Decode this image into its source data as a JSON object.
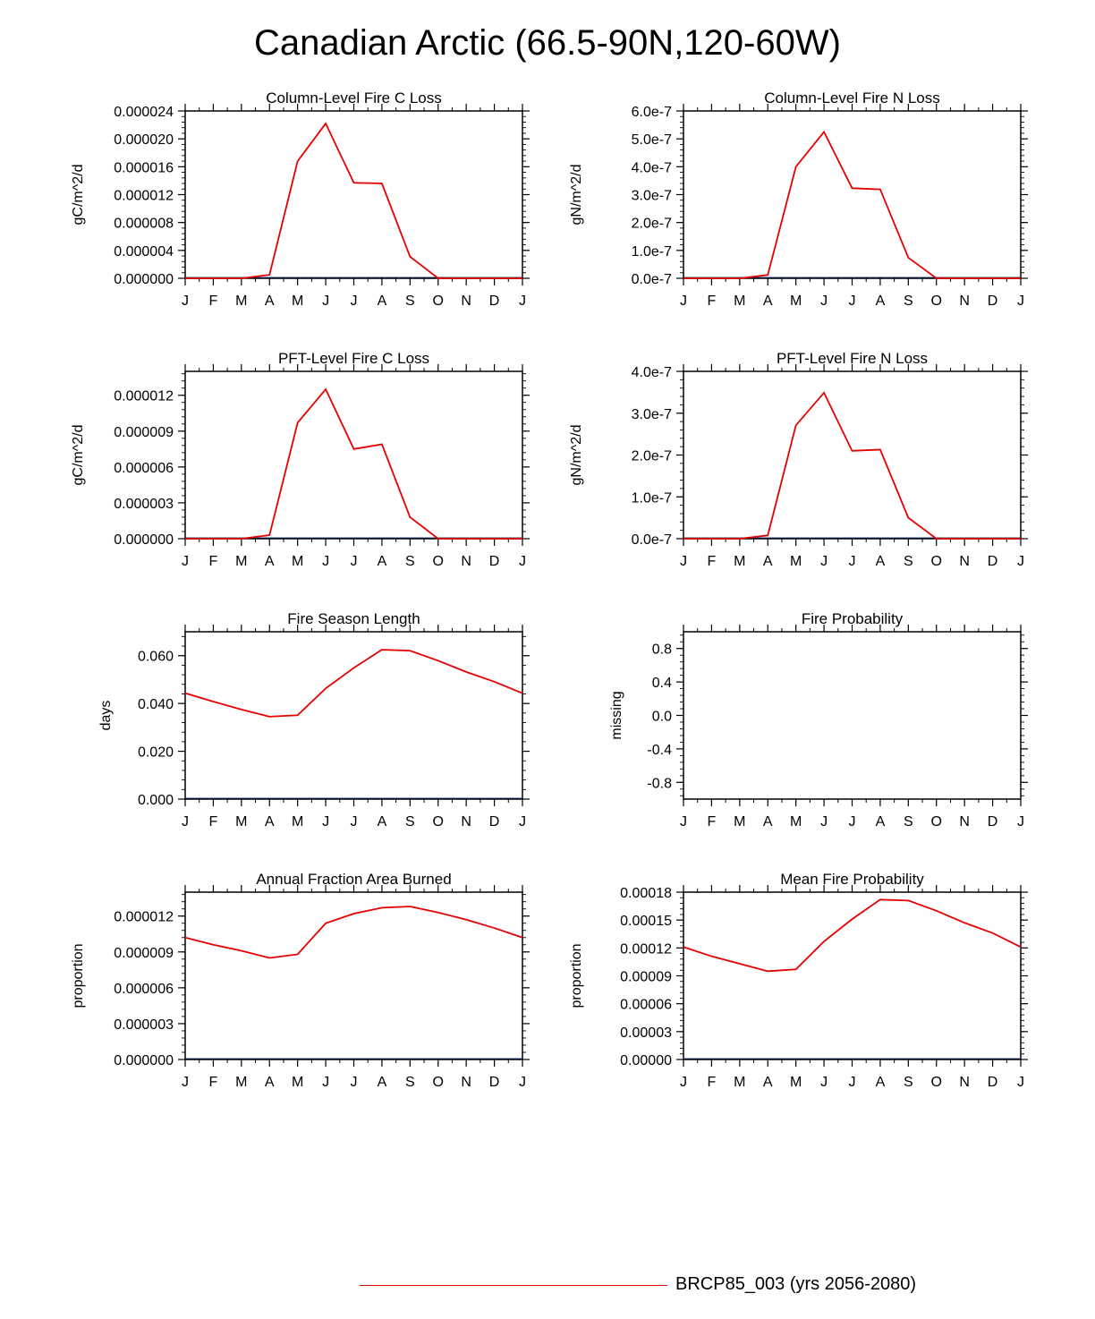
{
  "page_title": "Canadian Arctic (66.5-90N,120-60W)",
  "legend": {
    "label": "BRCP85_003 (yrs 2056-2080)",
    "color": "#e60000"
  },
  "chart_data": [
    {
      "type": "line",
      "title": "Column-Level Fire C Loss",
      "ylabel": "gC/m^2/d",
      "ylim": [
        0,
        2.4e-05
      ],
      "yticks": [
        "0.000000",
        "0.000004",
        "0.000008",
        "0.000012",
        "0.000016",
        "0.000020",
        "0.000024"
      ],
      "xticks": [
        "J",
        "F",
        "M",
        "A",
        "M",
        "J",
        "J",
        "A",
        "S",
        "O",
        "N",
        "D",
        "J"
      ],
      "series": [
        {
          "name": "BRCP85_003 (yrs 2056-2080)",
          "values": [
            0,
            0,
            0,
            5e-07,
            1.68e-05,
            2.22e-05,
            1.37e-05,
            1.36e-05,
            3.1e-06,
            0,
            0,
            0,
            0
          ]
        }
      ]
    },
    {
      "type": "line",
      "title": "Column-Level Fire N Loss",
      "ylabel": "gN/m^2/d",
      "ylim": [
        0,
        6e-07
      ],
      "yticks": [
        "0.0e-7",
        "1.0e-7",
        "2.0e-7",
        "3.0e-7",
        "4.0e-7",
        "5.0e-7",
        "6.0e-7"
      ],
      "xticks": [
        "J",
        "F",
        "M",
        "A",
        "M",
        "J",
        "J",
        "A",
        "S",
        "O",
        "N",
        "D",
        "J"
      ],
      "series": [
        {
          "name": "BRCP85_003 (yrs 2056-2080)",
          "values": [
            0,
            0,
            0,
            1.2e-08,
            4e-07,
            5.25e-07,
            3.23e-07,
            3.19e-07,
            7.4e-08,
            0,
            0,
            0,
            0
          ]
        }
      ]
    },
    {
      "type": "line",
      "title": "PFT-Level Fire C Loss",
      "ylabel": "gC/m^2/d",
      "ylim": [
        0,
        1.4e-05
      ],
      "yticks": [
        "0.000000",
        "0.000003",
        "0.000006",
        "0.000009",
        "0.000012"
      ],
      "ytick_values": [
        0,
        3e-06,
        6e-06,
        9e-06,
        1.2e-05
      ],
      "xticks": [
        "J",
        "F",
        "M",
        "A",
        "M",
        "J",
        "J",
        "A",
        "S",
        "O",
        "N",
        "D",
        "J"
      ],
      "series": [
        {
          "name": "BRCP85_003 (yrs 2056-2080)",
          "values": [
            0,
            0,
            0,
            3e-07,
            9.7e-06,
            1.25e-05,
            7.5e-06,
            7.9e-06,
            1.8e-06,
            0,
            0,
            0,
            0
          ]
        }
      ]
    },
    {
      "type": "line",
      "title": "PFT-Level Fire N Loss",
      "ylabel": "gN/m^2/d",
      "ylim": [
        0,
        4e-07
      ],
      "yticks": [
        "0.0e-7",
        "1.0e-7",
        "2.0e-7",
        "3.0e-7",
        "4.0e-7"
      ],
      "xticks": [
        "J",
        "F",
        "M",
        "A",
        "M",
        "J",
        "J",
        "A",
        "S",
        "O",
        "N",
        "D",
        "J"
      ],
      "series": [
        {
          "name": "BRCP85_003 (yrs 2056-2080)",
          "values": [
            0,
            0,
            0,
            8e-09,
            2.71e-07,
            3.49e-07,
            2.1e-07,
            2.13e-07,
            5e-08,
            0,
            0,
            0,
            0
          ]
        }
      ]
    },
    {
      "type": "line",
      "title": "Fire Season Length",
      "ylabel": "days",
      "ylim": [
        0,
        0.07
      ],
      "yticks": [
        "0.000",
        "0.020",
        "0.040",
        "0.060"
      ],
      "ytick_values": [
        0,
        0.02,
        0.04,
        0.06
      ],
      "xticks": [
        "J",
        "F",
        "M",
        "A",
        "M",
        "J",
        "J",
        "A",
        "S",
        "O",
        "N",
        "D",
        "J"
      ],
      "series": [
        {
          "name": "BRCP85_003 (yrs 2056-2080)",
          "values": [
            0.0443,
            0.0408,
            0.0375,
            0.0345,
            0.0351,
            0.0463,
            0.0549,
            0.0625,
            0.0621,
            0.0579,
            0.0532,
            0.0491,
            0.0443
          ]
        }
      ]
    },
    {
      "type": "line",
      "title": "Fire Probability",
      "ylabel": "missing",
      "ylim": [
        -1,
        1
      ],
      "yticks": [
        "-0.8",
        "-0.4",
        "0.0",
        "0.4",
        "0.8"
      ],
      "ytick_values": [
        -0.8,
        -0.4,
        0,
        0.4,
        0.8
      ],
      "xticks": [
        "J",
        "F",
        "M",
        "A",
        "M",
        "J",
        "J",
        "A",
        "S",
        "O",
        "N",
        "D",
        "J"
      ],
      "series": []
    },
    {
      "type": "line",
      "title": "Annual Fraction Area Burned",
      "ylabel": "proportion",
      "ylim": [
        0,
        1.4e-05
      ],
      "yticks": [
        "0.000000",
        "0.000003",
        "0.000006",
        "0.000009",
        "0.000012"
      ],
      "ytick_values": [
        0,
        3e-06,
        6e-06,
        9e-06,
        1.2e-05
      ],
      "xticks": [
        "J",
        "F",
        "M",
        "A",
        "M",
        "J",
        "J",
        "A",
        "S",
        "O",
        "N",
        "D",
        "J"
      ],
      "series": [
        {
          "name": "BRCP85_003 (yrs 2056-2080)",
          "values": [
            1.02e-05,
            9.6e-06,
            9.1e-06,
            8.5e-06,
            8.8e-06,
            1.14e-05,
            1.22e-05,
            1.27e-05,
            1.28e-05,
            1.23e-05,
            1.17e-05,
            1.1e-05,
            1.02e-05
          ]
        }
      ]
    },
    {
      "type": "line",
      "title": "Mean Fire Probability",
      "ylabel": "proportion",
      "ylim": [
        0,
        0.00018
      ],
      "yticks": [
        "0.00000",
        "0.00003",
        "0.00006",
        "0.00009",
        "0.00012",
        "0.00015",
        "0.00018"
      ],
      "xticks": [
        "J",
        "F",
        "M",
        "A",
        "M",
        "J",
        "J",
        "A",
        "S",
        "O",
        "N",
        "D",
        "J"
      ],
      "series": [
        {
          "name": "BRCP85_003 (yrs 2056-2080)",
          "values": [
            0.000121,
            0.000111,
            0.000103,
            9.5e-05,
            9.7e-05,
            0.000127,
            0.000151,
            0.000172,
            0.000171,
            0.00016,
            0.000147,
            0.000136,
            0.000121
          ]
        }
      ]
    }
  ]
}
